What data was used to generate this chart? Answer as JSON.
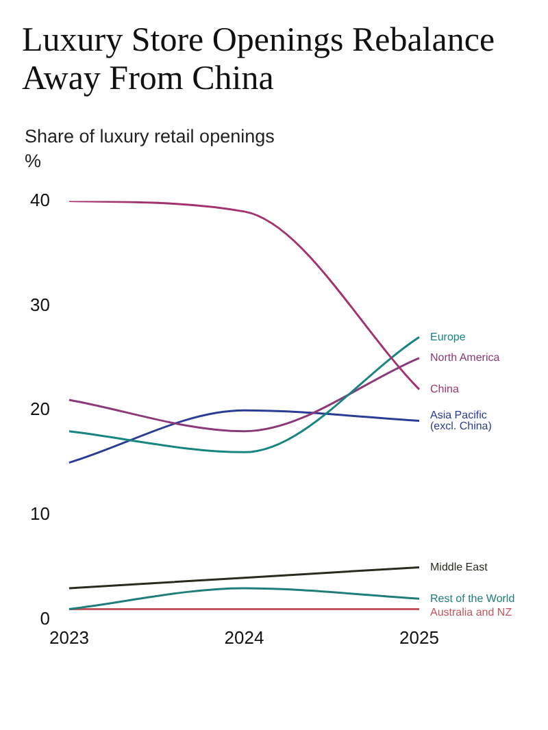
{
  "chart_data": {
    "type": "line",
    "title": "Luxury Store Openings Rebalance Away From China",
    "subtitle": "Share of luxury retail openings",
    "ylabel": "%",
    "categories": [
      "2023",
      "2024",
      "2025"
    ],
    "series": [
      {
        "name": "China",
        "color": "#a3336f",
        "values": [
          40,
          39,
          22
        ]
      },
      {
        "name": "Europe",
        "color": "#16857f",
        "values": [
          18,
          16,
          27
        ]
      },
      {
        "name": "North America",
        "color": "#8a3a78",
        "values": [
          21,
          18,
          25
        ]
      },
      {
        "name": "Asia Pacific (excl. China)",
        "color": "#2a3c96",
        "values": [
          15,
          20,
          19
        ]
      },
      {
        "name": "Middle East",
        "color": "#2a2a1e",
        "values": [
          3,
          4,
          5
        ]
      },
      {
        "name": "Rest of the World",
        "color": "#1f7d7a",
        "values": [
          1,
          3,
          2
        ]
      },
      {
        "name": "Australia and NZ",
        "color": "#c4545e",
        "values": [
          1,
          1,
          1
        ]
      }
    ],
    "ylim": [
      0,
      40
    ],
    "yticks": [
      0,
      10,
      20,
      30,
      40
    ],
    "grid": false,
    "legend": false,
    "marker": "none",
    "line_style": "solid"
  }
}
